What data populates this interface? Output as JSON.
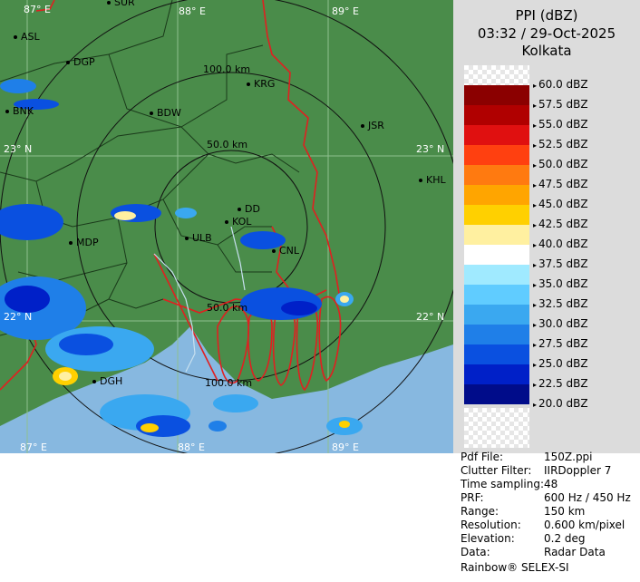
{
  "header": {
    "product": "PPI (dBZ)",
    "datetime": "03:32 / 29-Oct-2025",
    "station": "Kolkata"
  },
  "colors": {
    "land": "#4a8c4a",
    "sea": "#87b8e0",
    "border": "#e02020",
    "rings": "#111111"
  },
  "map": {
    "coordinates": {
      "lon_87_top": "87° E",
      "lon_88_top": "88° E",
      "lon_89_top": "89° E",
      "lat_23_left": "23° N",
      "lat_23_right": "23° N",
      "lat_22_left": "22° N",
      "lat_22_right": "22° N",
      "lon_87_bottom": "87° E",
      "lon_88_bottom": "88° E",
      "lon_89_bottom": "89° E"
    },
    "ring_labels": {
      "r100_upper": "100.0 km",
      "r50_upper": "50.0 km",
      "r50_lower": "50.0 km",
      "r100_lower": "100.0 km"
    },
    "places": {
      "suri": "SUR",
      "asl": "ASL",
      "dgp": "DGP",
      "krg": "KRG",
      "bdw": "BDW",
      "jsr": "JSR",
      "bnk": "BNK",
      "khl": "KHL",
      "dd": "DD",
      "kol": "KOL",
      "ulb": "ULB",
      "mdp": "MDP",
      "cnl": "CNL",
      "dgh": "DGH"
    }
  },
  "legend": {
    "items": [
      {
        "label": "60.0 dBZ",
        "color": "checker"
      },
      {
        "label": "57.5 dBZ",
        "color": "#8b0000"
      },
      {
        "label": "55.0 dBZ",
        "color": "#b00000"
      },
      {
        "label": "52.5 dBZ",
        "color": "#e01010"
      },
      {
        "label": "50.0 dBZ",
        "color": "#ff4010"
      },
      {
        "label": "47.5 dBZ",
        "color": "#ff7a10"
      },
      {
        "label": "45.0 dBZ",
        "color": "#ffa500"
      },
      {
        "label": "42.5 dBZ",
        "color": "#ffd000"
      },
      {
        "label": "40.0 dBZ",
        "color": "#fff0a0"
      },
      {
        "label": "37.5 dBZ",
        "color": "#ffffff"
      },
      {
        "label": "35.0 dBZ",
        "color": "#a0eaff"
      },
      {
        "label": "32.5 dBZ",
        "color": "#60ccff"
      },
      {
        "label": "30.0 dBZ",
        "color": "#3aa8f0"
      },
      {
        "label": "27.5 dBZ",
        "color": "#1f7fe8"
      },
      {
        "label": "25.0 dBZ",
        "color": "#0a50e0"
      },
      {
        "label": "22.5 dBZ",
        "color": "#0020c8"
      },
      {
        "label": "20.0 dBZ",
        "color": "#000c8a"
      }
    ]
  },
  "info": {
    "pdf_file_key": "Pdf File:",
    "pdf_file_val": "150Z.ppi",
    "clutter_key": "Clutter Filter:",
    "clutter_val": "IIRDoppler 7",
    "time_key": "Time sampling:",
    "time_val": "48",
    "prf_key": "PRF:",
    "prf_val": "600 Hz / 450 Hz",
    "range_key": "Range:",
    "range_val": "150 km",
    "resolution_key": "Resolution:",
    "resolution_val": "0.600 km/pixel",
    "elevation_key": "Elevation:",
    "elevation_val": "0.2 deg",
    "data_key": "Data:",
    "data_val": "Radar Data",
    "footer": "Rainbow® SELEX-SI"
  }
}
